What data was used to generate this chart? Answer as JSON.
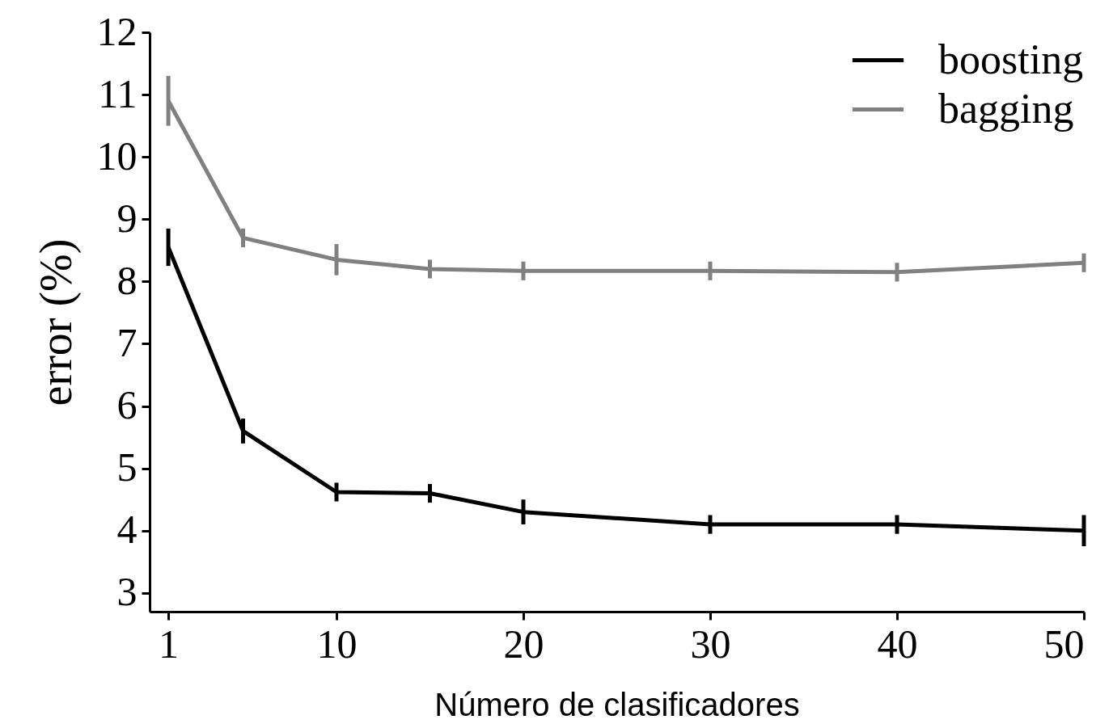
{
  "chart_data": {
    "type": "line",
    "xlabel": "Número de clasificadores",
    "ylabel": "error (%)",
    "x": [
      1,
      5,
      10,
      15,
      20,
      30,
      40,
      50
    ],
    "xlim": [
      0,
      50
    ],
    "xticks": [
      1,
      10,
      20,
      30,
      40,
      50
    ],
    "ylim": [
      2.7,
      12
    ],
    "yticks": [
      3,
      4,
      5,
      6,
      7,
      8,
      9,
      10,
      11,
      12
    ],
    "legend": "top right",
    "line_style": "solid",
    "series": [
      {
        "name": "boosting",
        "color": "#000000",
        "values": [
          8.55,
          5.6,
          4.62,
          4.6,
          4.3,
          4.1,
          4.1,
          4.0
        ],
        "errors": [
          0.3,
          0.2,
          0.15,
          0.15,
          0.2,
          0.15,
          0.15,
          0.25
        ]
      },
      {
        "name": "bagging",
        "color": "#808080",
        "values": [
          10.9,
          8.7,
          8.35,
          8.2,
          8.17,
          8.17,
          8.15,
          8.3
        ],
        "errors": [
          0.4,
          0.15,
          0.25,
          0.15,
          0.15,
          0.15,
          0.15,
          0.15
        ]
      }
    ]
  }
}
